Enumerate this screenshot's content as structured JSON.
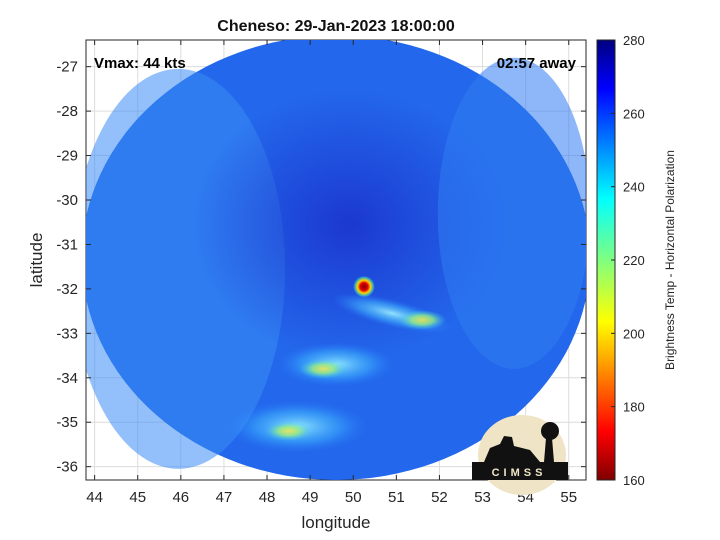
{
  "chart_data": {
    "type": "heatmap",
    "title": "Cheneso: 29-Jan-2023 18:00:00",
    "xlabel": "longitude",
    "ylabel": "latitude",
    "xlim": [
      43.8,
      55.4
    ],
    "ylim": [
      -36.3,
      -26.4
    ],
    "xticks": [
      44,
      45,
      46,
      47,
      48,
      49,
      50,
      51,
      52,
      53,
      54,
      55
    ],
    "yticks": [
      -27,
      -28,
      -29,
      -30,
      -31,
      -32,
      -33,
      -34,
      -35,
      -36
    ],
    "grid": true,
    "annotations": {
      "vmax": "Vmax: 44 kts",
      "time_away": "02:57 away"
    },
    "colorbar": {
      "label": "Brightness Temp - Horizontal Polarization",
      "range": [
        160,
        280
      ],
      "ticks": [
        160,
        180,
        200,
        220,
        240,
        260,
        280
      ],
      "colormap": "jet"
    },
    "swath": {
      "center_lon": 49.6,
      "center_lat": -31.3,
      "radius_lon": 5.9,
      "radius_lat": 5.0
    },
    "features": [
      {
        "lon": 50.25,
        "lat": -31.95,
        "value": 165,
        "kind": "core"
      },
      {
        "lon": 51.6,
        "lat": -32.7,
        "value": 225,
        "kind": "band"
      },
      {
        "lon": 49.3,
        "lat": -33.8,
        "value": 215,
        "kind": "band"
      },
      {
        "lon": 48.5,
        "lat": -35.2,
        "value": 230,
        "kind": "band"
      }
    ]
  },
  "logo": {
    "text": "CIMSS"
  }
}
